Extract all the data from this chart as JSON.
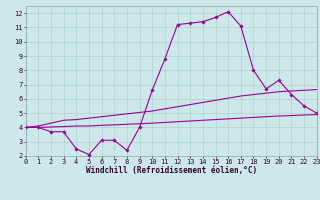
{
  "x": [
    0,
    1,
    2,
    3,
    4,
    5,
    6,
    7,
    8,
    9,
    10,
    11,
    12,
    13,
    14,
    15,
    16,
    17,
    18,
    19,
    20,
    21,
    22,
    23
  ],
  "y_temp": [
    4.0,
    4.0,
    3.7,
    3.7,
    2.5,
    2.1,
    3.1,
    3.1,
    2.4,
    4.0,
    6.6,
    8.8,
    11.2,
    11.3,
    11.4,
    11.7,
    12.1,
    11.1,
    8.0,
    6.7,
    7.3,
    6.3,
    5.5,
    5.0
  ],
  "y_upper": [
    4.0,
    4.1,
    4.3,
    4.5,
    4.55,
    4.65,
    4.75,
    4.85,
    4.95,
    5.05,
    5.15,
    5.3,
    5.45,
    5.6,
    5.75,
    5.9,
    6.05,
    6.2,
    6.3,
    6.4,
    6.5,
    6.55,
    6.6,
    6.65
  ],
  "y_lower": [
    4.0,
    4.0,
    4.03,
    4.06,
    4.1,
    4.1,
    4.15,
    4.18,
    4.22,
    4.26,
    4.3,
    4.35,
    4.4,
    4.45,
    4.5,
    4.55,
    4.6,
    4.65,
    4.7,
    4.75,
    4.8,
    4.83,
    4.87,
    4.9
  ],
  "line_color": "#990099",
  "bg_color": "#cce8e8",
  "grid_color": "#b0d0d0",
  "xlabel": "Windchill (Refroidissement éolien,°C)",
  "xlim": [
    0,
    23
  ],
  "ylim": [
    2,
    12.5
  ],
  "xticks": [
    0,
    1,
    2,
    3,
    4,
    5,
    6,
    7,
    8,
    9,
    10,
    11,
    12,
    13,
    14,
    15,
    16,
    17,
    18,
    19,
    20,
    21,
    22,
    23
  ],
  "yticks": [
    2,
    3,
    4,
    5,
    6,
    7,
    8,
    9,
    10,
    11,
    12
  ],
  "xlabel_fontsize": 5.5,
  "tick_fontsize": 5.0,
  "marker_size": 1.8,
  "line_width": 0.8
}
